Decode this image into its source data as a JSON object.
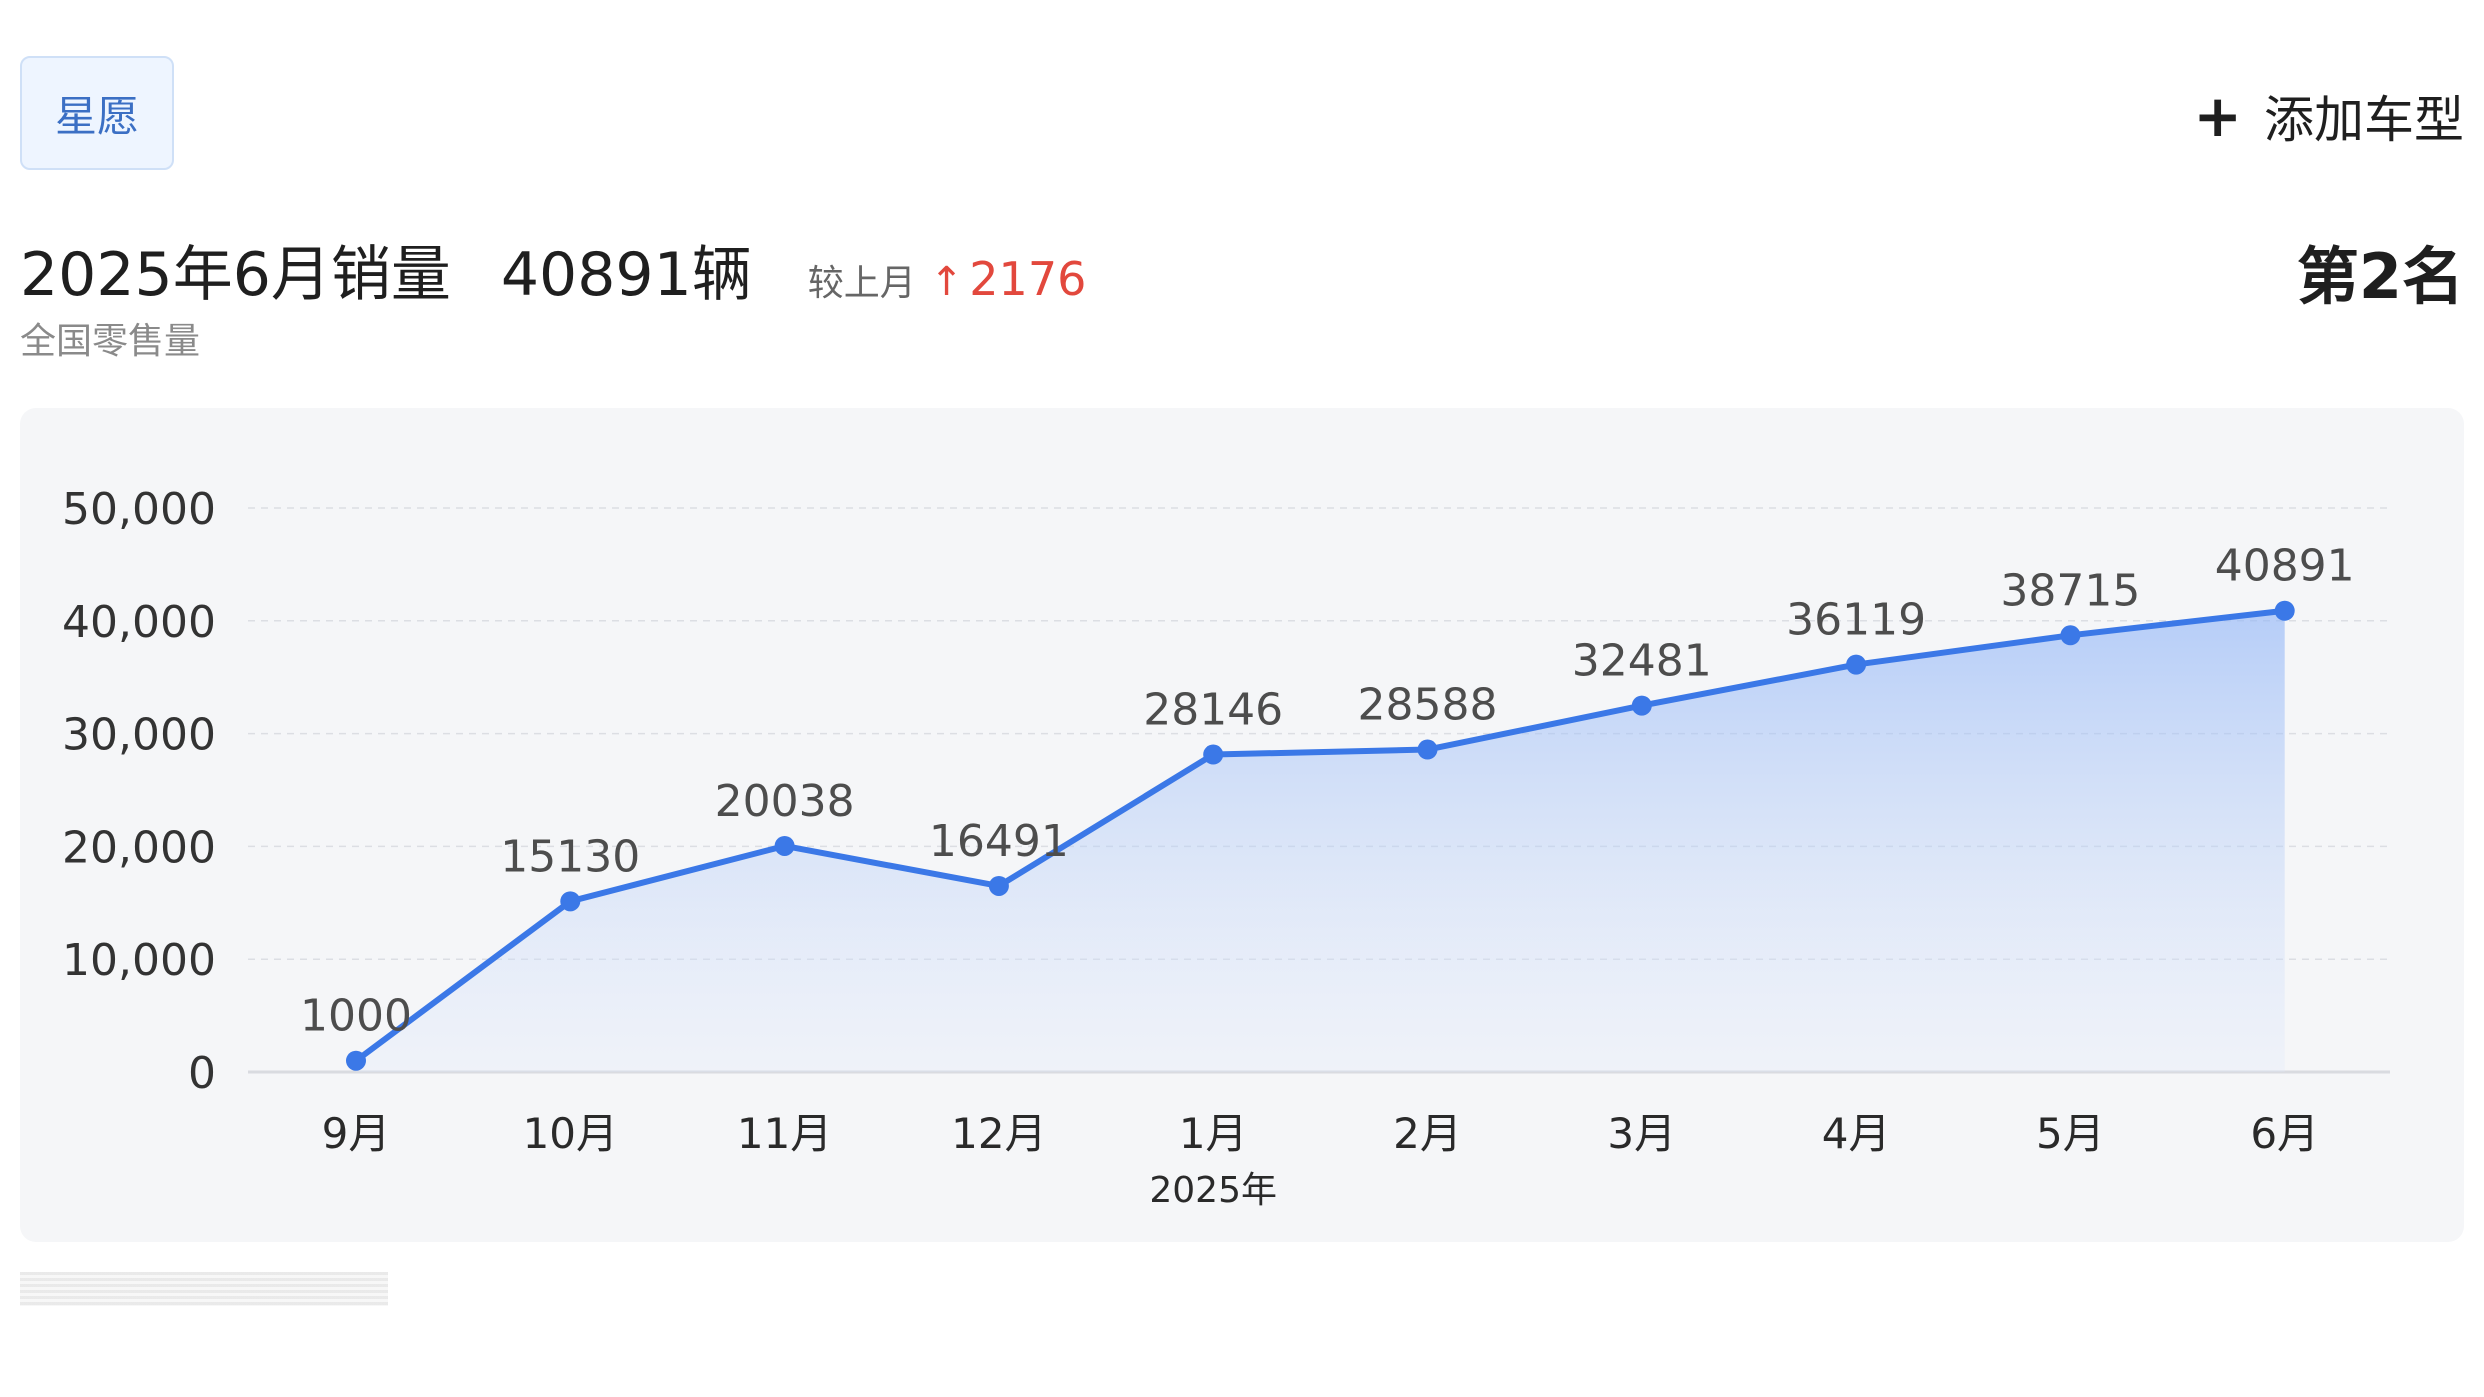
{
  "header": {
    "tag_label": "星愿",
    "add_label": "添加车型",
    "add_icon": "plus-icon"
  },
  "summary": {
    "title": "2025年6月销量",
    "volume": "40891辆",
    "compare_label": "较上月",
    "delta_icon": "arrow-up-icon",
    "delta": "2176",
    "subtitle": "全国零售量",
    "rank": "第2名"
  },
  "colors": {
    "accent": "#3b78e7",
    "up": "#e2483d",
    "tag_text": "#3b6fc4"
  },
  "chart_data": {
    "type": "area",
    "categories": [
      "9月",
      "10月",
      "11月",
      "12月",
      "1月",
      "2月",
      "3月",
      "4月",
      "5月",
      "6月"
    ],
    "series": [
      {
        "values": [
          1000,
          15130,
          20038,
          16491,
          28146,
          28588,
          32481,
          36119,
          38715,
          40891
        ]
      }
    ],
    "data_labels": [
      "1000",
      "15130",
      "20038",
      "16491",
      "28146",
      "28588",
      "32481",
      "36119",
      "38715",
      "40891"
    ],
    "year_label": "2025年",
    "year_label_category": "1月",
    "y_ticks": [
      "0",
      "10,000",
      "20,000",
      "30,000",
      "40,000",
      "50,000"
    ],
    "ylim": [
      0,
      50000
    ],
    "grid": true,
    "legend": false
  }
}
